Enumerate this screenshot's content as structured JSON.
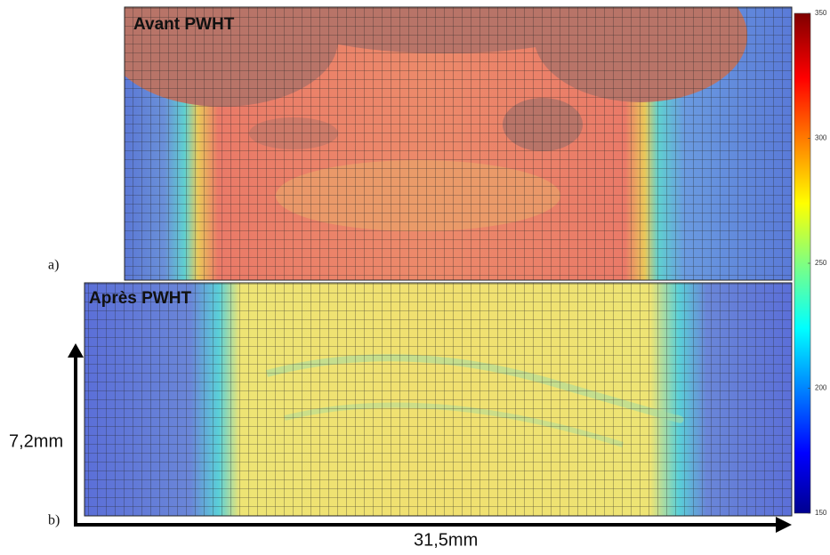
{
  "panels": [
    {
      "label": "a)",
      "title": "Avant PWHT"
    },
    {
      "label": "b)",
      "title": "Après PWHT"
    }
  ],
  "colorbar": {
    "ticks": [
      150,
      200,
      250,
      300,
      350
    ]
  },
  "axes": {
    "height_label": "7,2mm",
    "width_label": "31,5mm"
  }
}
